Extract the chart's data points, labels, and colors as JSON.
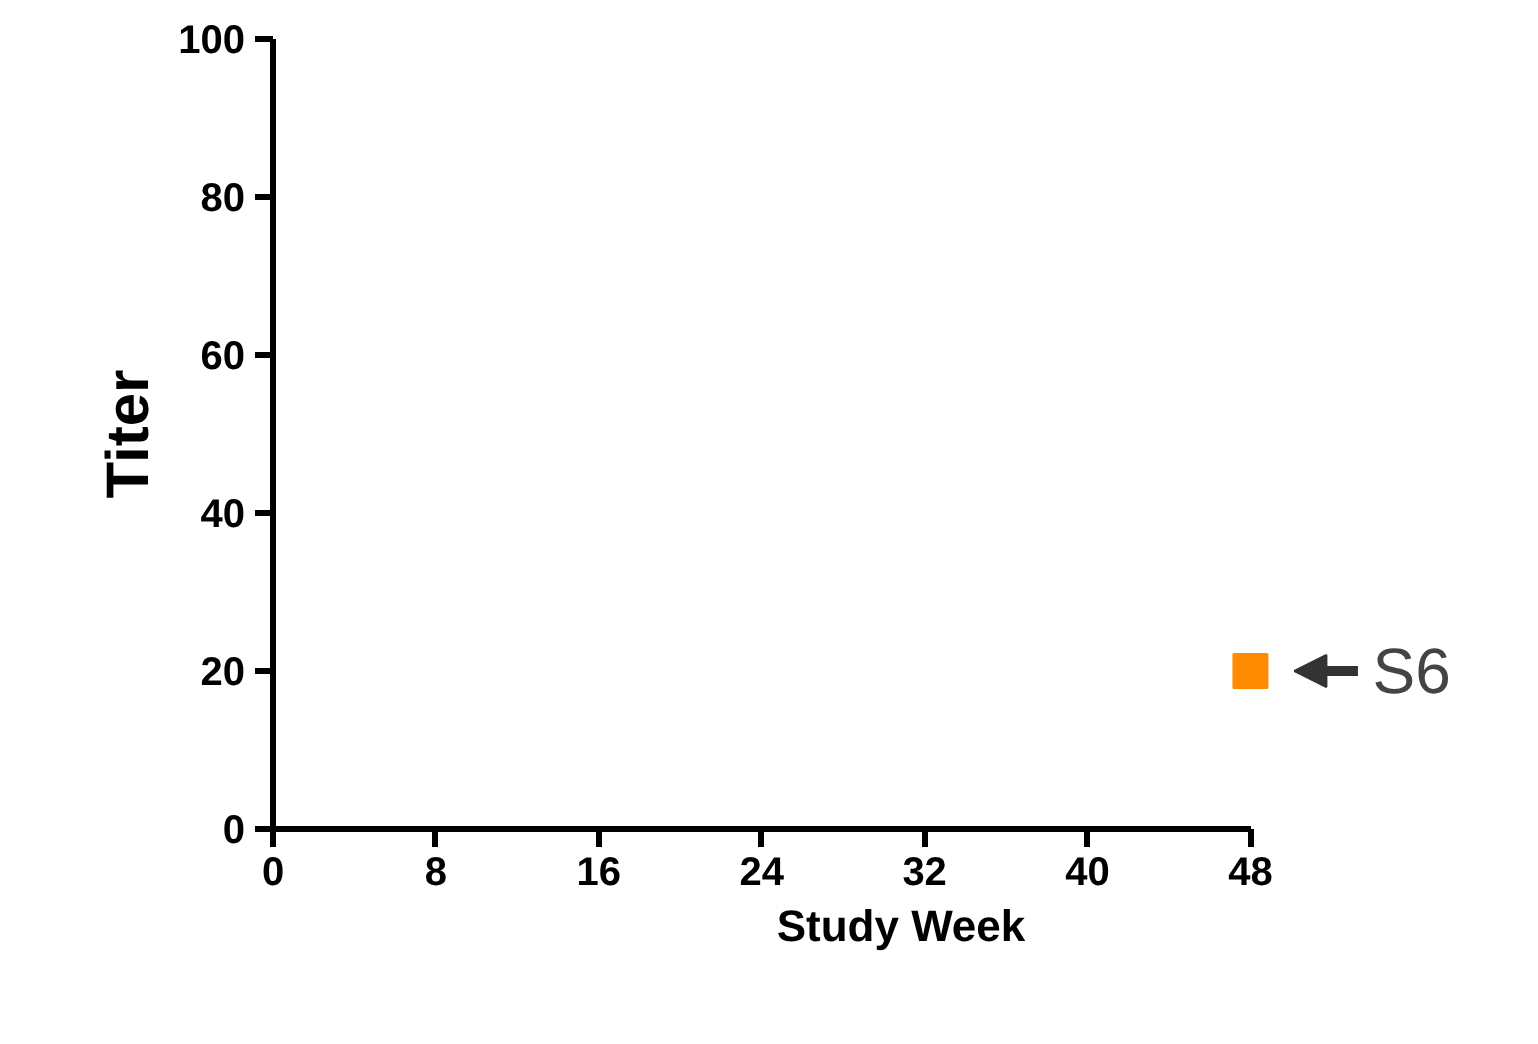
{
  "chart_data": {
    "type": "scatter",
    "xlabel": "Study Week",
    "ylabel": "Titer",
    "x": [
      48
    ],
    "values": [
      20
    ],
    "color": "#ff8c00",
    "marker": "square",
    "xlim": [
      0,
      48
    ],
    "ylim": [
      0,
      100
    ],
    "xticks": [
      0,
      8,
      16,
      24,
      32,
      40,
      48
    ],
    "yticks": [
      0,
      20,
      40,
      60,
      80,
      100
    ],
    "grid": false,
    "annotations": [
      {
        "text": "S6",
        "x": 48,
        "y": 20
      }
    ]
  }
}
